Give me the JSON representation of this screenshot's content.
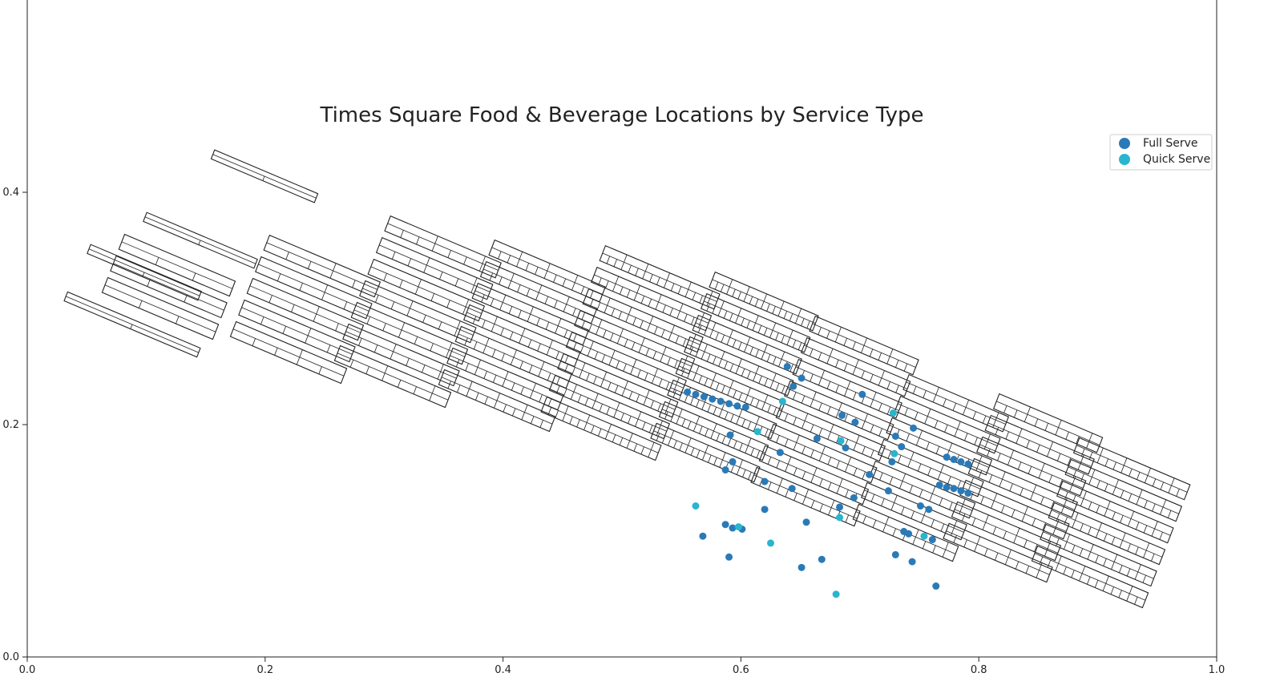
{
  "chart_data": {
    "type": "scatter",
    "title": "Times Square Food & Beverage Locations by Service Type",
    "xlabel": "",
    "ylabel": "",
    "xlim": [
      0.0,
      1.0
    ],
    "ylim": [
      0.0,
      0.5
    ],
    "xticks": [
      "0.0",
      "0.2",
      "0.4",
      "0.6",
      "0.8",
      "1.0"
    ],
    "yticks": [
      "0.0",
      "0.2",
      "0.4"
    ],
    "legend_position": "top-right",
    "grid": false,
    "series": [
      {
        "name": "Full Serve",
        "color": "#2a7ab8",
        "points": [
          [
            0.639,
            0.25
          ],
          [
            0.651,
            0.24
          ],
          [
            0.644,
            0.233
          ],
          [
            0.702,
            0.226
          ],
          [
            0.685,
            0.208
          ],
          [
            0.696,
            0.202
          ],
          [
            0.745,
            0.197
          ],
          [
            0.73,
            0.19
          ],
          [
            0.735,
            0.181
          ],
          [
            0.591,
            0.191
          ],
          [
            0.664,
            0.188
          ],
          [
            0.688,
            0.18
          ],
          [
            0.633,
            0.176
          ],
          [
            0.727,
            0.168
          ],
          [
            0.593,
            0.168
          ],
          [
            0.587,
            0.161
          ],
          [
            0.708,
            0.157
          ],
          [
            0.62,
            0.151
          ],
          [
            0.643,
            0.145
          ],
          [
            0.724,
            0.143
          ],
          [
            0.695,
            0.137
          ],
          [
            0.683,
            0.129
          ],
          [
            0.751,
            0.13
          ],
          [
            0.758,
            0.127
          ],
          [
            0.62,
            0.127
          ],
          [
            0.655,
            0.116
          ],
          [
            0.587,
            0.114
          ],
          [
            0.593,
            0.111
          ],
          [
            0.601,
            0.11
          ],
          [
            0.568,
            0.104
          ],
          [
            0.737,
            0.108
          ],
          [
            0.741,
            0.106
          ],
          [
            0.761,
            0.101
          ],
          [
            0.73,
            0.088
          ],
          [
            0.744,
            0.082
          ],
          [
            0.59,
            0.086
          ],
          [
            0.668,
            0.084
          ],
          [
            0.651,
            0.077
          ],
          [
            0.764,
            0.061
          ],
          [
            0.555,
            0.228
          ],
          [
            0.562,
            0.226
          ],
          [
            0.569,
            0.224
          ],
          [
            0.576,
            0.222
          ],
          [
            0.583,
            0.22
          ],
          [
            0.59,
            0.218
          ],
          [
            0.597,
            0.216
          ],
          [
            0.604,
            0.215
          ],
          [
            0.773,
            0.172
          ],
          [
            0.779,
            0.17
          ],
          [
            0.785,
            0.168
          ],
          [
            0.791,
            0.166
          ],
          [
            0.767,
            0.148
          ],
          [
            0.773,
            0.146
          ],
          [
            0.779,
            0.145
          ],
          [
            0.785,
            0.143
          ],
          [
            0.791,
            0.141
          ]
        ]
      },
      {
        "name": "Quick Serve",
        "color": "#2ab5cf",
        "points": [
          [
            0.635,
            0.22
          ],
          [
            0.728,
            0.21
          ],
          [
            0.614,
            0.194
          ],
          [
            0.684,
            0.186
          ],
          [
            0.729,
            0.175
          ],
          [
            0.562,
            0.13
          ],
          [
            0.683,
            0.12
          ],
          [
            0.625,
            0.098
          ],
          [
            0.754,
            0.104
          ],
          [
            0.68,
            0.054
          ],
          [
            0.598,
            0.112
          ]
        ]
      }
    ]
  }
}
